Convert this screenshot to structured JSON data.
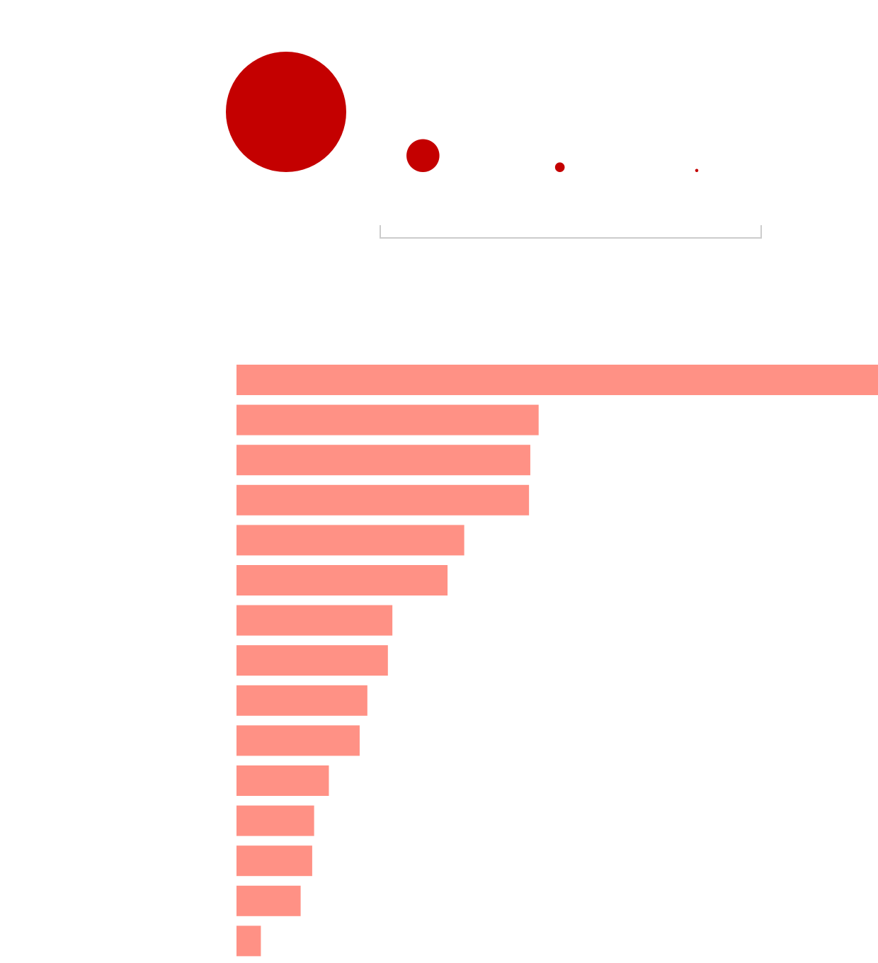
{
  "colors": {
    "bubble": "#c40000",
    "bar": "#ff9185",
    "bracket": "#cccccc",
    "background": "#ffffff"
  },
  "chart_data": [
    {
      "type": "scatter",
      "encoding": "bubble-size",
      "points": [
        {
          "x": 1,
          "size": 1.0
        },
        {
          "x": 2,
          "size": 0.075
        },
        {
          "x": 3,
          "size": 0.0064
        },
        {
          "x": 4,
          "size": 0.0007
        }
      ],
      "bracket_span_points": [
        2,
        4
      ],
      "grid": false,
      "legend": "none"
    },
    {
      "type": "bar",
      "orientation": "horizontal",
      "values": [
        100,
        47.1,
        45.8,
        45.6,
        35.5,
        32.9,
        24.3,
        23.6,
        20.4,
        19.2,
        14.4,
        12.1,
        11.8,
        10.0,
        3.8
      ],
      "xlim": [
        0,
        100
      ],
      "grid": false,
      "legend": "none"
    }
  ]
}
